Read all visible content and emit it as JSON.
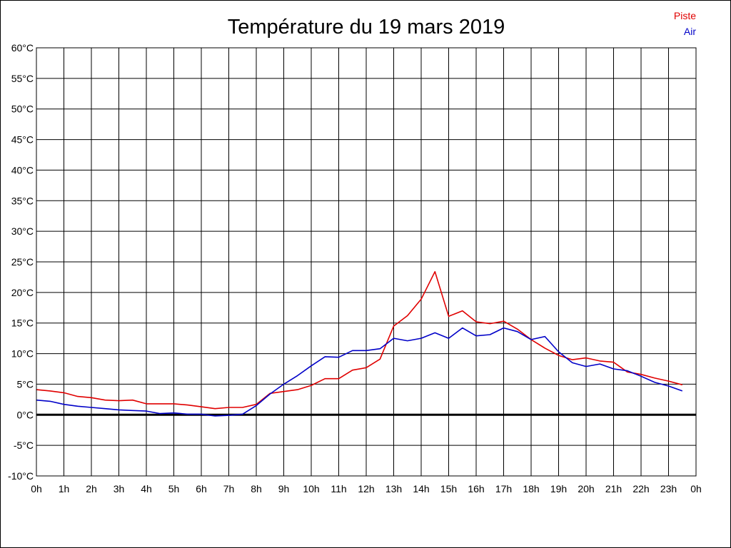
{
  "chart_data": {
    "type": "line",
    "title": "Température du 19 mars 2019",
    "xlabel": "",
    "ylabel": "",
    "x_unit": "hour",
    "xlim": [
      0,
      24
    ],
    "ylim": [
      -10,
      60
    ],
    "grid": true,
    "legend_position": "top-right",
    "x_tick_labels": [
      "0h",
      "1h",
      "2h",
      "3h",
      "4h",
      "5h",
      "6h",
      "7h",
      "8h",
      "9h",
      "10h",
      "11h",
      "12h",
      "13h",
      "14h",
      "15h",
      "16h",
      "17h",
      "18h",
      "19h",
      "20h",
      "21h",
      "22h",
      "23h",
      "0h"
    ],
    "y_ticks": [
      -10,
      -5,
      0,
      5,
      10,
      15,
      20,
      25,
      30,
      35,
      40,
      45,
      50,
      55,
      60
    ],
    "y_tick_labels": [
      "-10°C",
      "-5°C",
      "0°C",
      "5°C",
      "10°C",
      "15°C",
      "20°C",
      "25°C",
      "30°C",
      "35°C",
      "40°C",
      "45°C",
      "50°C",
      "55°C",
      "60°C"
    ],
    "x": [
      0,
      0.5,
      1,
      1.5,
      2,
      2.5,
      3,
      3.5,
      4,
      4.5,
      5,
      5.5,
      6,
      6.5,
      7,
      7.5,
      8,
      8.5,
      9,
      9.5,
      10,
      10.5,
      11,
      11.5,
      12,
      12.5,
      13,
      13.5,
      14,
      14.5,
      15,
      15.5,
      16,
      16.5,
      17,
      17.5,
      18,
      18.5,
      19,
      19.5,
      20,
      20.5,
      21,
      21.5,
      22,
      22.5,
      23,
      23.5
    ],
    "series": [
      {
        "name": "Piste",
        "color": "#e00000",
        "values": [
          4.1,
          3.9,
          3.6,
          3.0,
          2.8,
          2.4,
          2.3,
          2.4,
          1.8,
          1.8,
          1.8,
          1.6,
          1.3,
          1.0,
          1.2,
          1.2,
          1.7,
          3.5,
          3.8,
          4.1,
          4.8,
          5.9,
          5.9,
          7.3,
          7.7,
          9.1,
          14.5,
          16.2,
          18.9,
          23.4,
          16.1,
          17.0,
          15.2,
          14.9,
          15.3,
          14.0,
          12.3,
          10.9,
          9.7,
          9.0,
          9.3,
          8.8,
          8.6,
          7.0,
          6.6,
          6.0,
          5.5,
          4.9
        ]
      },
      {
        "name": "Air",
        "color": "#0000c8",
        "values": [
          2.4,
          2.2,
          1.7,
          1.4,
          1.2,
          1.0,
          0.8,
          0.7,
          0.6,
          0.2,
          0.3,
          0.1,
          0.1,
          -0.2,
          -0.1,
          0.1,
          1.5,
          3.4,
          5.0,
          6.4,
          8.0,
          9.5,
          9.4,
          10.5,
          10.5,
          10.8,
          12.5,
          12.1,
          12.5,
          13.4,
          12.5,
          14.2,
          12.9,
          13.1,
          14.2,
          13.6,
          12.3,
          12.8,
          10.3,
          8.5,
          7.9,
          8.3,
          7.5,
          7.2,
          6.3,
          5.3,
          4.7,
          3.9
        ]
      }
    ]
  }
}
